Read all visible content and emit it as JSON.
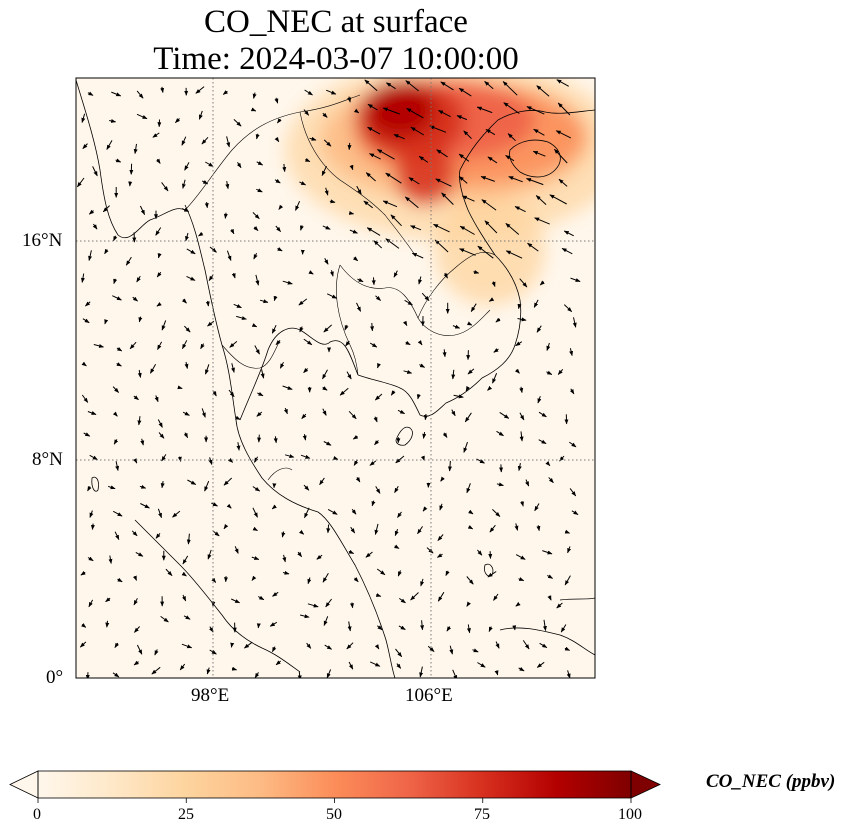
{
  "title": {
    "line1": "CO_NEC at surface",
    "line2": "Time: 2024-03-07 10:00:00"
  },
  "axes": {
    "lat_ticks": [
      "0°",
      "8°N",
      "16°N"
    ],
    "lon_ticks": [
      "98°E",
      "106°E"
    ],
    "gridlines": "dotted"
  },
  "colorbar": {
    "label": "CO_NEC (ppbv)",
    "ticks": [
      "0",
      "25",
      "50",
      "75",
      "100"
    ],
    "min": 0,
    "max": 100,
    "extend": "both",
    "colormap": "OrRd",
    "colors": [
      "#fff7ec",
      "#fee8c8",
      "#fdd49e",
      "#fdbb84",
      "#fc8d59",
      "#ef6548",
      "#d7301f",
      "#b30000",
      "#7f0000"
    ]
  },
  "map_data": {
    "lon_range": [
      93,
      112
    ],
    "lat_range": [
      0,
      22
    ],
    "plume": "high CO_NEC concentrations over northern Vietnam, Laos and the Gulf of Tonkin, peaking near 100 ppbv; near zero elsewhere",
    "vectors": "surface wind arrows"
  }
}
